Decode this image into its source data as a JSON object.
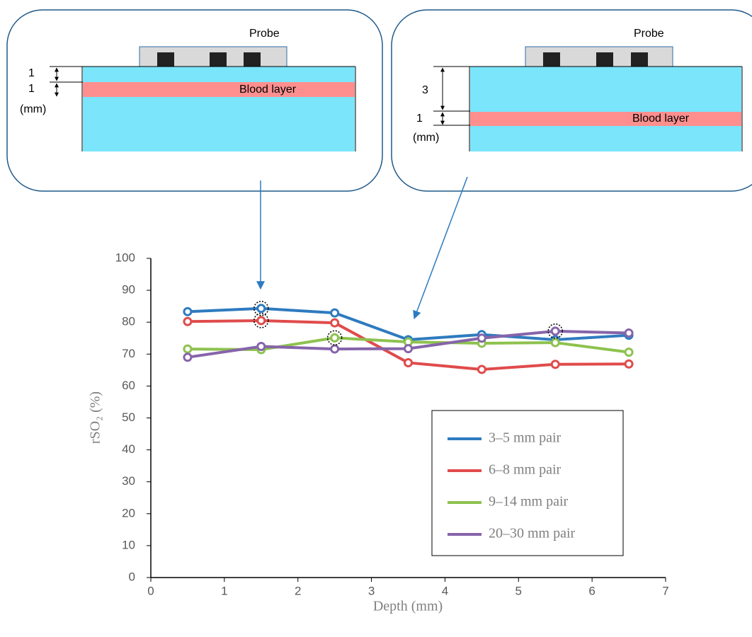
{
  "chart_data": {
    "type": "line",
    "x": [
      0.5,
      1.5,
      2.5,
      3.5,
      4.5,
      5.5,
      6.5
    ],
    "series": [
      {
        "name": "3–5 mm pair",
        "color": "#2e7bbf",
        "values": [
          83.3,
          84.3,
          82.9,
          74.5,
          76.1,
          74.5,
          75.9
        ]
      },
      {
        "name": "6–8 mm pair",
        "color": "#e04b4b",
        "values": [
          80.2,
          80.5,
          79.8,
          67.3,
          65.2,
          66.8,
          66.9
        ]
      },
      {
        "name": "9–14 mm pair",
        "color": "#8dc24e",
        "values": [
          71.6,
          71.4,
          75.1,
          73.8,
          73.4,
          73.6,
          70.6
        ]
      },
      {
        "name": "20–30 mm pair",
        "color": "#8664aa",
        "values": [
          69.0,
          72.4,
          71.6,
          71.7,
          75.0,
          77.2,
          76.6
        ]
      }
    ],
    "highlighted_points": [
      {
        "series": 0,
        "index": 1
      },
      {
        "series": 1,
        "index": 1
      },
      {
        "series": 2,
        "index": 2
      },
      {
        "series": 3,
        "index": 5
      }
    ],
    "xlabel": "Depth (mm)",
    "ylabel": "rSO₂ (%)",
    "xlim": [
      0,
      7
    ],
    "xticks": [
      0,
      1,
      2,
      3,
      4,
      5,
      6,
      7
    ],
    "ylim": [
      0,
      100
    ],
    "yticks": [
      0,
      10,
      20,
      30,
      40,
      50,
      60,
      70,
      80,
      90,
      100
    ],
    "grid": false,
    "legend": "lower right"
  },
  "insets": [
    {
      "probe": "Probe",
      "dims": [
        "1",
        "1"
      ],
      "unit": "(mm)",
      "layer": "Blood layer"
    },
    {
      "probe": "Probe",
      "dims": [
        "3",
        "1"
      ],
      "unit": "(mm)",
      "layer": "Blood layer"
    }
  ]
}
